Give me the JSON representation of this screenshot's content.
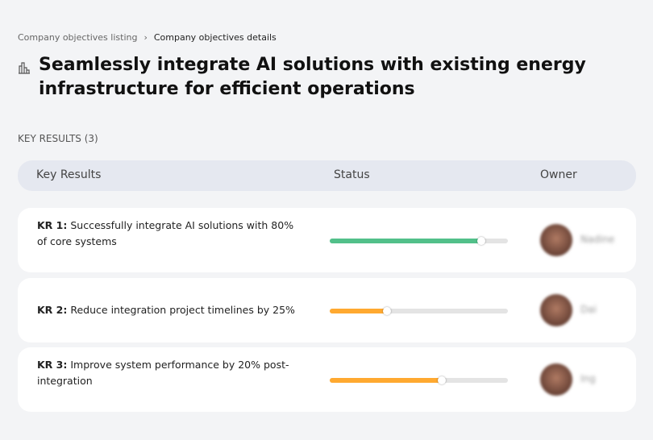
{
  "breadcrumb": {
    "items": [
      "Company objectives listing",
      "Company objectives details"
    ],
    "separator": "›"
  },
  "header": {
    "icon": "building-chart-icon",
    "title": "Seamlessly integrate AI solutions with existing energy infrastructure for efficient operations"
  },
  "section_label": "KEY RESULTS (3)",
  "table": {
    "columns": [
      "Key Results",
      "Status",
      "Owner"
    ],
    "rows": [
      {
        "id": "KR 1:",
        "text": "Successfully integrate AI solutions with 80% of core systems",
        "progress": 0.85,
        "color": "#52c08a",
        "owner": "Nadine"
      },
      {
        "id": "KR 2:",
        "text": "Reduce integration project timelines by 25%",
        "progress": 0.32,
        "color": "#ffa930",
        "owner": "Dai"
      },
      {
        "id": "KR 3:",
        "text": "Improve system performance by 20% post-integration",
        "progress": 0.63,
        "color": "#ffa930",
        "owner": "Ing"
      }
    ]
  }
}
